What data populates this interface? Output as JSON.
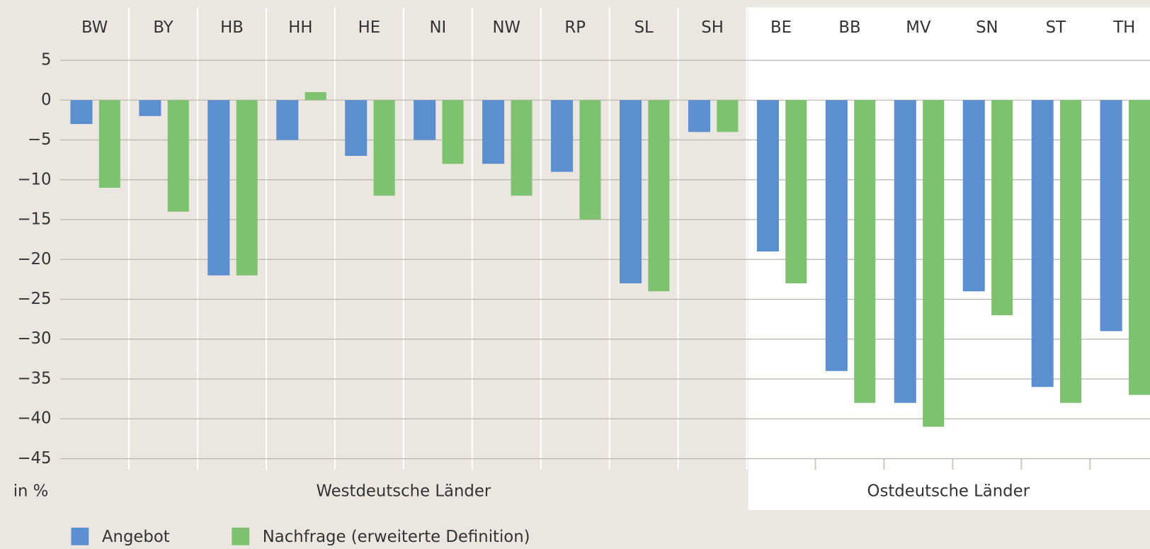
{
  "chart_data": {
    "type": "bar",
    "groups": [
      {
        "label": "Westdeutsche Länder",
        "categories": [
          "BW",
          "BY",
          "HB",
          "HH",
          "HE",
          "NI",
          "NW",
          "RP",
          "SL",
          "SH"
        ]
      },
      {
        "label": "Ostdeutsche Länder",
        "categories": [
          "BE",
          "BB",
          "MV",
          "SN",
          "ST",
          "TH"
        ]
      }
    ],
    "series": [
      {
        "name": "Angebot",
        "color": "#5b8fcf",
        "values": [
          -3,
          -2,
          -22,
          -5,
          -7,
          -5,
          -8,
          -9,
          -23,
          -4,
          -19,
          -34,
          -38,
          -24,
          -36,
          -29
        ]
      },
      {
        "name": "Nachfrage (erweiterte Definition)",
        "color": "#7dc36f",
        "values": [
          -11,
          -14,
          -22,
          1,
          -12,
          -8,
          -12,
          -15,
          -24,
          -4,
          -23,
          -38,
          -41,
          -27,
          -38,
          -37
        ]
      }
    ],
    "y_unit_label": "in %",
    "ylim": [
      -45,
      5
    ],
    "yticks": [
      5,
      0,
      {
        "value": -5,
        "label": "−5"
      },
      {
        "value": -10,
        "label": "−10"
      },
      {
        "value": -15,
        "label": "−15"
      },
      {
        "value": -20,
        "label": "−20"
      },
      {
        "value": -25,
        "label": "−25"
      },
      {
        "value": -30,
        "label": "−30"
      },
      {
        "value": -35,
        "label": "−35"
      },
      {
        "value": -40,
        "label": "−40"
      },
      {
        "value": -45,
        "label": "−45"
      }
    ],
    "grid": true
  }
}
